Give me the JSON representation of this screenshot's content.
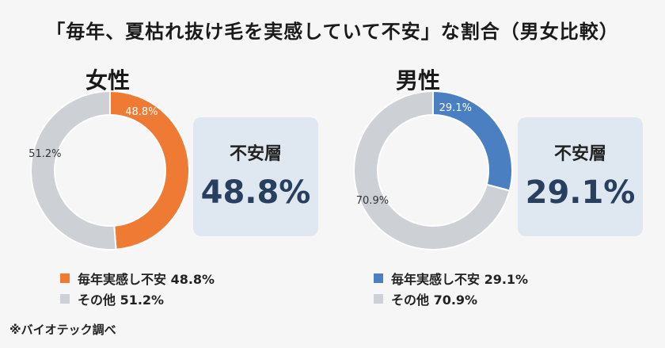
{
  "title": "「毎年、夏枯れ抜け毛を実感していて不安」な割合（男女比較）",
  "colors": {
    "female_accent": "#ee7a33",
    "male_accent": "#4a80c2",
    "other": "#cdd0d4",
    "stat_box": "#dfe7f1",
    "stat_value": "#283f5e"
  },
  "chart_data": [
    {
      "type": "pie",
      "title": "女性",
      "categories": [
        "毎年実感し不安",
        "その他"
      ],
      "values": [
        48.8,
        51.2
      ],
      "slice_labels": [
        "48.8%",
        "51.2%"
      ],
      "colors": [
        "#ee7a33",
        "#cdd0d4"
      ],
      "legend": [
        "毎年実感し不安 48.8%",
        "その他 51.2%"
      ],
      "stat_label": "不安層",
      "stat_value": "48.8%"
    },
    {
      "type": "pie",
      "title": "男性",
      "categories": [
        "毎年実感し不安",
        "その他"
      ],
      "values": [
        29.1,
        70.9
      ],
      "slice_labels": [
        "29.1%",
        "70.9%"
      ],
      "colors": [
        "#4a80c2",
        "#cdd0d4"
      ],
      "legend": [
        "毎年実感し不安 29.1%",
        "その他 70.9%"
      ],
      "stat_label": "不安層",
      "stat_value": "29.1%"
    }
  ],
  "footnote": "※バイオテック調べ"
}
